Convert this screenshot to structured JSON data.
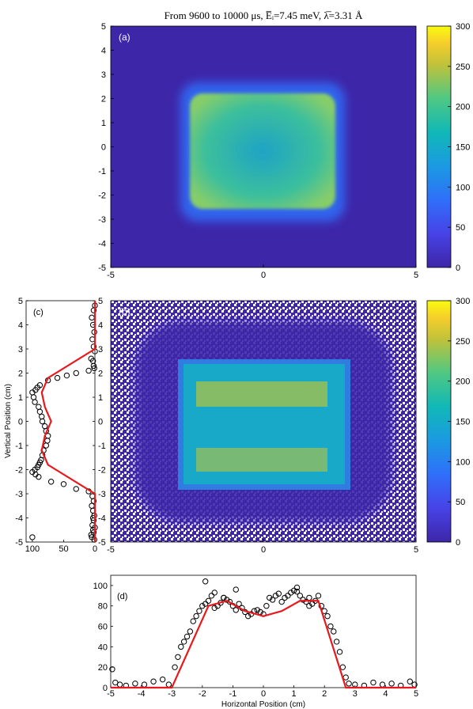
{
  "figure": {
    "title": "From 9600 to 10000 μs, E̅ᵢ=7.45 meV, λ̅=3.31 Å"
  },
  "chart_data": [
    {
      "type": "heatmap",
      "panel_label": "(a)",
      "xlim": [
        -5,
        5
      ],
      "ylim": [
        -5,
        5
      ],
      "x_ticks": [
        "-5",
        "0",
        "5"
      ],
      "y_ticks": [
        "5",
        "4",
        "3",
        "2",
        "1",
        "0",
        "-1",
        "-2",
        "-3",
        "-4",
        "-5"
      ],
      "colorbar": {
        "range": [
          0,
          300
        ],
        "ticks": [
          "300",
          "250",
          "200",
          "150",
          "100",
          "50",
          "0"
        ]
      },
      "description_values": {
        "background": 20,
        "center": 140,
        "corners": 200,
        "x_extent": [
          -2.6,
          2.6
        ],
        "y_extent": [
          -2.8,
          2.6
        ]
      }
    },
    {
      "type": "heatmap",
      "panel_label": "(b)",
      "xlim": [
        -5,
        5
      ],
      "ylim": [
        -5,
        5
      ],
      "x_ticks": [
        "-5",
        "0",
        "5"
      ],
      "y_ticks": [
        "5",
        "4",
        "3",
        "2",
        "1",
        "0",
        "-1",
        "-2",
        "-3",
        "-4",
        "-5"
      ],
      "colorbar": {
        "range": [
          0,
          300
        ],
        "ticks": [
          "300",
          "250",
          "200",
          "150",
          "100",
          "50",
          "0"
        ]
      }
    },
    {
      "type": "scatter",
      "panel_label": "(c)",
      "ylabel": "Vertical Position (cm)",
      "xlim": [
        0,
        110
      ],
      "ylim": [
        -5,
        5
      ],
      "x_ticks": [
        "100",
        "50",
        "0"
      ],
      "y_ticks": [
        "5",
        "4",
        "3",
        "2",
        "1",
        "0",
        "-1",
        "-2",
        "-3",
        "-4",
        "-5"
      ],
      "fit_line": {
        "color": "#e8191d",
        "x": [
          0,
          0,
          75,
          85,
          80,
          70,
          80,
          85,
          75,
          0,
          0
        ],
        "y": [
          5,
          3.0,
          1.8,
          1.2,
          0.6,
          0.0,
          -0.6,
          -1.2,
          -1.8,
          -3.0,
          -5
        ]
      },
      "markers": {
        "x": [
          0,
          2,
          5,
          3,
          1,
          4,
          2,
          0,
          6,
          3,
          2,
          1,
          10,
          30,
          45,
          60,
          75,
          88,
          92,
          95,
          100,
          98,
          96,
          90,
          88,
          85,
          84,
          80,
          78,
          75,
          76,
          78,
          82,
          84,
          86,
          88,
          90,
          92,
          96,
          100,
          95,
          90,
          70,
          50,
          30,
          10,
          4,
          2,
          5,
          3,
          1,
          2,
          4,
          3,
          6,
          5,
          2,
          1,
          0,
          3,
          100
        ],
        "y": [
          4.8,
          4.6,
          4.3,
          4.0,
          3.7,
          3.4,
          3.1,
          2.9,
          2.6,
          2.5,
          2.3,
          2.2,
          2.1,
          2.0,
          1.9,
          1.8,
          1.7,
          1.5,
          1.4,
          1.3,
          1.2,
          1.0,
          0.8,
          0.6,
          0.4,
          0.2,
          0.0,
          -0.2,
          -0.4,
          -0.6,
          -0.8,
          -1.0,
          -1.2,
          -1.4,
          -1.6,
          -1.7,
          -1.8,
          -1.9,
          -2.0,
          -2.1,
          -2.2,
          -2.3,
          -2.5,
          -2.6,
          -2.8,
          -2.9,
          -3.1,
          -3.3,
          -3.5,
          -3.7,
          -3.9,
          -4.1,
          -4.3,
          -4.5,
          -4.7,
          -4.8,
          -4.6,
          -4.9,
          -4.4,
          -4.0,
          -4.8
        ]
      }
    },
    {
      "type": "scatter",
      "panel_label": "(d)",
      "xlabel": "Horizontal Position (cm)",
      "xlim": [
        -5,
        5
      ],
      "ylim": [
        0,
        110
      ],
      "x_ticks": [
        "-5",
        "-4",
        "-3",
        "-2",
        "-1",
        "0",
        "1",
        "2",
        "3",
        "4",
        "5"
      ],
      "y_ticks": [
        "0",
        "20",
        "40",
        "60",
        "80",
        "100"
      ],
      "fit_line": {
        "color": "#e8191d",
        "x": [
          -5,
          -3.0,
          -1.8,
          -1.2,
          -0.6,
          0.0,
          0.6,
          1.2,
          1.8,
          2.7,
          5
        ],
        "y": [
          0,
          0,
          80,
          85,
          75,
          70,
          75,
          85,
          85,
          0,
          0
        ]
      },
      "markers": {
        "x": [
          -4.95,
          -4.85,
          -4.7,
          -4.5,
          -4.2,
          -3.9,
          -3.6,
          -3.3,
          -3.1,
          -2.9,
          -2.8,
          -2.7,
          -2.6,
          -2.5,
          -2.4,
          -2.3,
          -2.2,
          -2.1,
          -2.0,
          -1.9,
          -1.8,
          -1.7,
          -1.6,
          -1.5,
          -1.4,
          -1.3,
          -1.2,
          -1.1,
          -1.0,
          -0.9,
          -0.8,
          -0.7,
          -0.6,
          -0.5,
          -0.4,
          -0.3,
          -0.2,
          -0.1,
          0.0,
          0.1,
          0.2,
          0.3,
          0.4,
          0.5,
          0.6,
          0.7,
          0.8,
          0.9,
          1.0,
          1.1,
          1.2,
          1.3,
          1.4,
          1.5,
          1.6,
          1.7,
          1.8,
          1.9,
          2.0,
          2.1,
          2.2,
          2.3,
          2.4,
          2.5,
          2.6,
          2.7,
          2.8,
          3.0,
          3.3,
          3.6,
          3.9,
          4.2,
          4.5,
          4.8,
          4.95,
          -1.9,
          -1.6,
          -1.3,
          -0.9,
          1.1,
          1.5
        ],
        "y": [
          18,
          5,
          3,
          2,
          4,
          3,
          6,
          8,
          3,
          20,
          30,
          40,
          45,
          50,
          55,
          65,
          70,
          75,
          80,
          82,
          85,
          90,
          78,
          80,
          83,
          88,
          86,
          84,
          80,
          76,
          82,
          78,
          74,
          70,
          72,
          75,
          76,
          74,
          72,
          80,
          88,
          86,
          90,
          92,
          84,
          88,
          90,
          93,
          95,
          94,
          90,
          86,
          84,
          80,
          82,
          85,
          90,
          80,
          75,
          70,
          60,
          55,
          45,
          35,
          20,
          10,
          4,
          3,
          2,
          5,
          3,
          4,
          2,
          6,
          3,
          104,
          93,
          88,
          96,
          98,
          88
        ]
      }
    }
  ]
}
